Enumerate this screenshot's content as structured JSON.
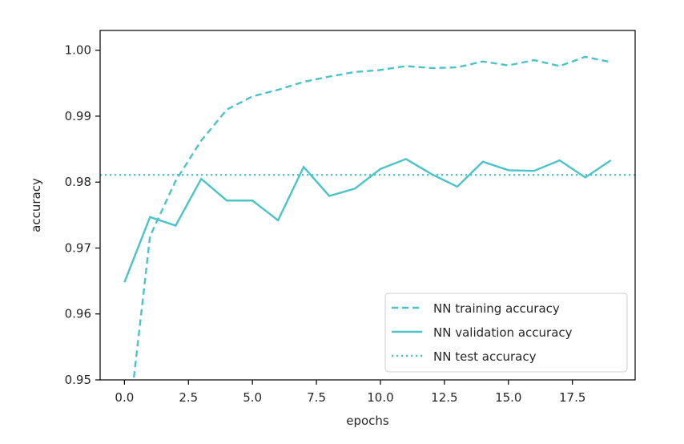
{
  "chart_data": {
    "type": "line",
    "xlabel": "epochs",
    "ylabel": "accuracy",
    "xlim": [
      -0.95,
      19.95
    ],
    "ylim": [
      0.95,
      1.003
    ],
    "x_ticks": [
      0.0,
      2.5,
      5.0,
      7.5,
      10.0,
      12.5,
      15.0,
      17.5
    ],
    "x_tick_labels": [
      "0.0",
      "2.5",
      "5.0",
      "7.5",
      "10.0",
      "12.5",
      "15.0",
      "17.5"
    ],
    "y_ticks": [
      0.95,
      0.96,
      0.97,
      0.98,
      0.99,
      1.0
    ],
    "y_tick_labels": [
      "0.95",
      "0.96",
      "0.97",
      "0.98",
      "0.99",
      "1.00"
    ],
    "grid": false,
    "legend_position": "lower-right",
    "color": "#4bc4c8",
    "series": [
      {
        "name": "NN training accuracy",
        "style": "dashed",
        "x": [
          0,
          1,
          2,
          3,
          4,
          5,
          6,
          7,
          8,
          9,
          10,
          11,
          12,
          13,
          14,
          15,
          16,
          17,
          18,
          19
        ],
        "values": [
          0.9378,
          0.9718,
          0.9802,
          0.9863,
          0.991,
          0.993,
          0.994,
          0.9952,
          0.996,
          0.9967,
          0.997,
          0.9976,
          0.9973,
          0.9974,
          0.9983,
          0.9977,
          0.9985,
          0.9976,
          0.999,
          0.9982
        ]
      },
      {
        "name": "NN validation accuracy",
        "style": "solid",
        "x": [
          0,
          1,
          2,
          3,
          4,
          5,
          6,
          7,
          8,
          9,
          10,
          11,
          12,
          13,
          14,
          15,
          16,
          17,
          18,
          19
        ],
        "values": [
          0.9648,
          0.9747,
          0.9734,
          0.9805,
          0.9772,
          0.9772,
          0.9742,
          0.9823,
          0.9779,
          0.979,
          0.982,
          0.9835,
          0.9812,
          0.9793,
          0.9831,
          0.9818,
          0.9817,
          0.9833,
          0.9807,
          0.9833
        ]
      },
      {
        "name": "NN test accuracy",
        "style": "dotted",
        "constant": 0.9811
      }
    ]
  }
}
